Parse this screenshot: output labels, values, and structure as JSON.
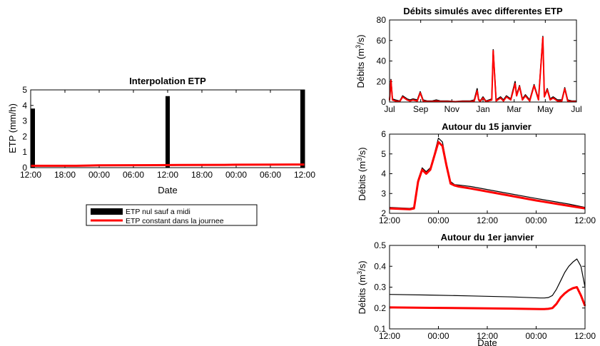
{
  "chart_data": [
    {
      "id": "etp",
      "type": "bar",
      "title": "Interpolation ETP",
      "xlabel": "Date",
      "ylabel": "ETP (mm/h)",
      "ylim": [
        0,
        5
      ],
      "yticks": [
        "0",
        "1",
        "2",
        "3",
        "4",
        "5"
      ],
      "xticks": [
        "12:00",
        "18:00",
        "00:00",
        "06:00",
        "12:00",
        "18:00",
        "00:00",
        "06:00",
        "12:00"
      ],
      "xlim_hours": [
        0,
        48
      ],
      "series": [
        {
          "name": "ETP nul sauf a midi",
          "color": "#000000",
          "kind": "bar",
          "x": [
            0,
            24,
            48
          ],
          "values": [
            3.8,
            4.6,
            5.0
          ]
        },
        {
          "name": "ETP constant dans la journee",
          "color": "#ff0000",
          "kind": "line",
          "x": [
            0,
            8,
            12,
            22,
            26,
            34,
            36,
            46,
            48
          ],
          "values": [
            0.12,
            0.12,
            0.15,
            0.16,
            0.17,
            0.18,
            0.19,
            0.2,
            0.2
          ]
        }
      ],
      "legend": "below"
    },
    {
      "id": "debits",
      "type": "line",
      "title": "Débits simulés avec differentes ETP",
      "ylabel_main": "Débits (m",
      "ylabel_sup": "3",
      "ylabel_end": "/s)",
      "ylim": [
        0,
        80
      ],
      "yticks": [
        "0",
        "20",
        "40",
        "60",
        "80"
      ],
      "xticks": [
        "Jul",
        "Sep",
        "Nov",
        "Jan",
        "Mar",
        "May",
        "Jul"
      ],
      "xlim_months": [
        0,
        12.8
      ],
      "series": [
        {
          "color": "#000000",
          "x": [
            0,
            0.1,
            0.2,
            0.4,
            0.7,
            0.9,
            1.2,
            1.4,
            1.6,
            1.9,
            2.1,
            2.3,
            2.6,
            2.9,
            3.2,
            3.5,
            4.0,
            4.5,
            5.0,
            5.5,
            5.8,
            6.0,
            6.1,
            6.2,
            6.4,
            6.6,
            7.0,
            7.1,
            7.3,
            7.6,
            7.8,
            8.0,
            8.3,
            8.6,
            8.7,
            8.9,
            9.1,
            9.3,
            9.6,
            9.9,
            10.2,
            10.5,
            10.6,
            10.8,
            11.0,
            11.2,
            11.5,
            11.8,
            12.0,
            12.2,
            12.5,
            12.8
          ],
          "values": [
            2,
            22,
            3,
            2,
            1,
            6,
            3,
            2,
            3,
            2,
            10,
            2,
            1,
            1,
            2,
            1,
            1,
            0.5,
            1,
            1,
            2,
            13,
            3,
            1,
            5,
            1,
            3,
            51,
            2,
            5,
            2,
            6,
            3,
            20,
            7,
            16,
            3,
            7,
            2,
            17,
            3,
            64,
            6,
            13,
            3,
            5,
            2,
            2,
            14,
            2,
            1,
            1
          ]
        },
        {
          "color": "#ff0000",
          "x": [
            0,
            0.1,
            0.2,
            0.4,
            0.7,
            0.9,
            1.2,
            1.4,
            1.6,
            1.9,
            2.1,
            2.3,
            2.6,
            2.9,
            3.2,
            3.5,
            4.0,
            4.5,
            5.0,
            5.5,
            5.8,
            6.0,
            6.1,
            6.2,
            6.4,
            6.6,
            7.0,
            7.1,
            7.3,
            7.6,
            7.8,
            8.0,
            8.3,
            8.6,
            8.7,
            8.9,
            9.1,
            9.3,
            9.6,
            9.9,
            10.2,
            10.5,
            10.6,
            10.8,
            11.0,
            11.2,
            11.5,
            11.8,
            12.0,
            12.2,
            12.5,
            12.8
          ],
          "values": [
            1.5,
            21,
            2,
            1,
            0.5,
            5,
            2,
            1,
            2,
            1,
            9,
            1,
            0.5,
            0.5,
            1,
            0.5,
            0.5,
            0.3,
            0.5,
            0.5,
            1,
            11,
            2,
            0.5,
            4,
            0.5,
            2,
            50,
            1,
            4,
            1,
            5,
            2,
            18,
            6,
            15,
            2,
            6,
            1,
            16,
            2,
            63,
            5,
            12,
            2,
            4,
            1,
            1,
            13,
            1,
            0.5,
            0.5
          ]
        }
      ]
    },
    {
      "id": "autour15",
      "type": "line",
      "title": "Autour du 15 janvier",
      "ylabel_main": "Débits (m",
      "ylabel_sup": "3",
      "ylabel_end": "/s)",
      "ylim": [
        2,
        6
      ],
      "yticks": [
        "2",
        "3",
        "4",
        "5",
        "6"
      ],
      "xticks": [
        "12:00",
        "00:00",
        "12:00",
        "00:00",
        "12:00"
      ],
      "xlim_hours": [
        0,
        48
      ],
      "series": [
        {
          "color": "#000000",
          "x": [
            0,
            5,
            6,
            7,
            8,
            9,
            10,
            11,
            12,
            13,
            14,
            15,
            16,
            17,
            20,
            28,
            36,
            44,
            48
          ],
          "values": [
            2.3,
            2.25,
            2.3,
            3.7,
            4.3,
            4.1,
            4.3,
            5.0,
            5.8,
            5.6,
            4.5,
            3.6,
            3.45,
            3.43,
            3.35,
            3.05,
            2.75,
            2.47,
            2.3
          ]
        },
        {
          "color": "#ff0000",
          "x": [
            0,
            5,
            6,
            7,
            8,
            9,
            10,
            11,
            12,
            13,
            14,
            15,
            16,
            17,
            20,
            28,
            36,
            44,
            48
          ],
          "values": [
            2.25,
            2.2,
            2.25,
            3.6,
            4.2,
            4.0,
            4.2,
            4.9,
            5.6,
            5.4,
            4.4,
            3.5,
            3.4,
            3.35,
            3.25,
            2.95,
            2.65,
            2.38,
            2.25
          ]
        }
      ]
    },
    {
      "id": "autour1",
      "type": "line",
      "title": "Autour du 1er janvier",
      "xlabel": "Date",
      "ylabel_main": "Débits (m",
      "ylabel_sup": "3",
      "ylabel_end": "/s)",
      "ylim": [
        0.1,
        0.5
      ],
      "yticks": [
        "0.1",
        "0.2",
        "0.3",
        "0.4",
        "0.5"
      ],
      "xticks": [
        "12:00",
        "00:00",
        "12:00",
        "00:00",
        "12:00"
      ],
      "xlim_hours": [
        0,
        48
      ],
      "series": [
        {
          "color": "#000000",
          "x": [
            0,
            10,
            20,
            30,
            37,
            38,
            39,
            40,
            41,
            42,
            43,
            44,
            45,
            46,
            47,
            48
          ],
          "values": [
            0.265,
            0.262,
            0.258,
            0.253,
            0.248,
            0.248,
            0.25,
            0.26,
            0.29,
            0.33,
            0.37,
            0.4,
            0.42,
            0.435,
            0.4,
            0.3
          ]
        },
        {
          "color": "#ff0000",
          "x": [
            0,
            10,
            20,
            30,
            37,
            38,
            39,
            40,
            41,
            42,
            43,
            44,
            45,
            46,
            47,
            48
          ],
          "values": [
            0.203,
            0.201,
            0.199,
            0.197,
            0.195,
            0.195,
            0.196,
            0.2,
            0.22,
            0.25,
            0.27,
            0.285,
            0.295,
            0.3,
            0.26,
            0.21
          ]
        }
      ]
    }
  ]
}
